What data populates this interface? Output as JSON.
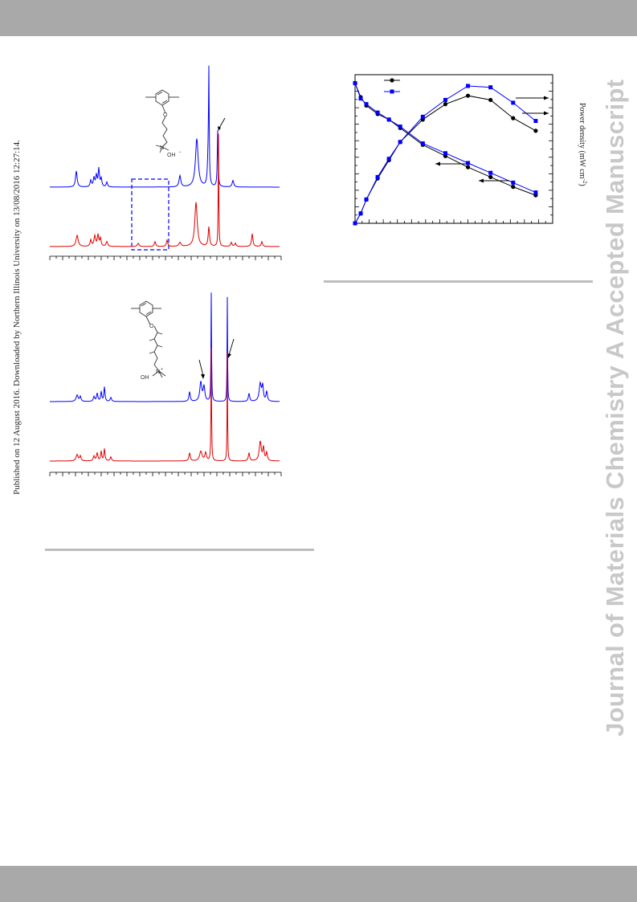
{
  "header_band_color": "#a9a9a9",
  "footer_band_color": "#a9a9a9",
  "publication_note": "Published on 12 August 2016. Downloaded by Northern Illinois University on 13/08/2016 12:27:14.",
  "watermark": "Journal of Materials Chemistry A Accepted Manuscript",
  "nmr_colors": {
    "top_trace": "#0000ff",
    "bottom_trace": "#e00000"
  },
  "nmr_structure_1": {
    "counter_ion": "OH",
    "charge": "−",
    "ammonium": "N",
    "ammonium_charge": "+"
  },
  "nmr_structure_2": {
    "counter_ion": "OH",
    "charge": "−",
    "ammonium": "N",
    "ammonium_charge": "+"
  },
  "chart_data": {
    "type": "line",
    "right_axis_label": "Power density (mW cm",
    "right_axis_superscript": "-2",
    "right_axis_label_close": ")",
    "legend_placement": "top-left",
    "grid": false,
    "series": [
      {
        "marker": "circle",
        "color": "#000000",
        "polarization": [
          [
            0,
            100
          ],
          [
            0.05,
            90
          ],
          [
            0.1,
            84
          ],
          [
            0.2,
            78
          ],
          [
            0.3,
            74
          ],
          [
            0.4,
            68
          ],
          [
            0.6,
            56
          ],
          [
            0.8,
            48
          ],
          [
            1.0,
            40
          ],
          [
            1.2,
            33
          ],
          [
            1.4,
            26
          ],
          [
            1.6,
            20
          ]
        ],
        "power": [
          [
            0,
            0
          ],
          [
            0.05,
            7
          ],
          [
            0.1,
            17
          ],
          [
            0.2,
            32
          ],
          [
            0.3,
            45
          ],
          [
            0.4,
            58
          ],
          [
            0.6,
            74
          ],
          [
            0.8,
            85
          ],
          [
            1.0,
            91
          ],
          [
            1.2,
            88
          ],
          [
            1.4,
            75
          ],
          [
            1.6,
            66
          ]
        ]
      },
      {
        "marker": "square",
        "color": "#0000ff",
        "polarization": [
          [
            0,
            100
          ],
          [
            0.05,
            89
          ],
          [
            0.1,
            85
          ],
          [
            0.2,
            79
          ],
          [
            0.3,
            74
          ],
          [
            0.4,
            69
          ],
          [
            0.6,
            57
          ],
          [
            0.8,
            50
          ],
          [
            1.0,
            43
          ],
          [
            1.2,
            36
          ],
          [
            1.4,
            29
          ],
          [
            1.6,
            22
          ]
        ],
        "power": [
          [
            0,
            0
          ],
          [
            0.05,
            7
          ],
          [
            0.1,
            17
          ],
          [
            0.2,
            33
          ],
          [
            0.3,
            46
          ],
          [
            0.4,
            58
          ],
          [
            0.6,
            76
          ],
          [
            0.8,
            88
          ],
          [
            1.0,
            98
          ],
          [
            1.2,
            97
          ],
          [
            1.4,
            86
          ],
          [
            1.6,
            73
          ]
        ]
      }
    ],
    "curve_arrows": [
      {
        "target": "power",
        "direction": "right"
      },
      {
        "target": "polarization",
        "direction": "left"
      }
    ]
  }
}
